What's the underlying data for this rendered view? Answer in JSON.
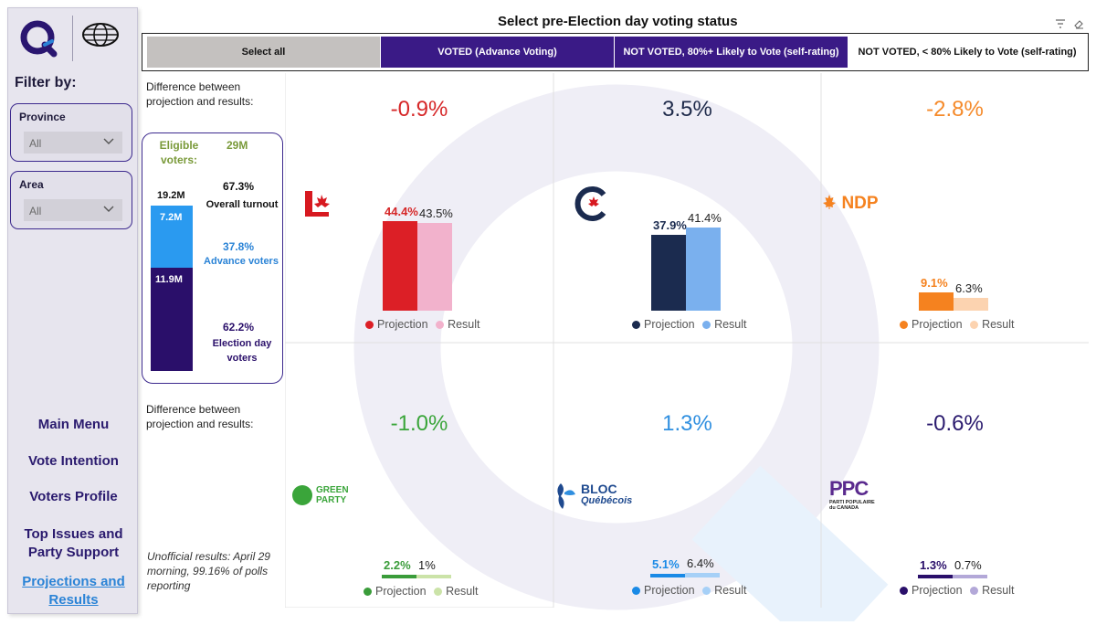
{
  "header": {
    "title": "Select pre-Election day voting status",
    "slicer_buttons": [
      {
        "label": "Select all",
        "bg": "#c4c1bf",
        "fg": "#111111"
      },
      {
        "label": "VOTED (Advance Voting)",
        "bg": "#3a1a86",
        "fg": "#ffffff"
      },
      {
        "label": "NOT VOTED, 80%+ Likely to Vote (self-rating)",
        "bg": "#3a1a86",
        "fg": "#ffffff"
      },
      {
        "label": "NOT VOTED, < 80% Likely to Vote (self-rating)",
        "bg": "#ffffff",
        "fg": "#111111"
      }
    ]
  },
  "sidebar": {
    "filter_title": "Filter by:",
    "filters": [
      {
        "label": "Province",
        "value": "All"
      },
      {
        "label": "Area",
        "value": "All"
      }
    ],
    "nav": [
      "Main Menu",
      "Vote Intention",
      "Voters Profile",
      "Top Issues and Party Support",
      "Projections and Results"
    ],
    "active_nav": "Projections and Results"
  },
  "info": {
    "diff_label": "Difference between projection and results:",
    "eligible_label": "Eligible voters:",
    "eligible_value": "29M",
    "total_voters": "19.2M",
    "overall_turnout_pct": "67.3%",
    "overall_turnout_label": "Overall turnout",
    "advance_value": "7.2M",
    "advance_pct": "37.8%",
    "advance_label": "Advance voters",
    "election_day_value": "11.9M",
    "election_day_pct": "62.2%",
    "election_day_label": "Election day voters",
    "unofficial_note": "Unofficial results: April 29 morning, 99.16% of polls reporting"
  },
  "legend": {
    "projection": "Projection",
    "result": "Result"
  },
  "parties": [
    {
      "key": "liberal",
      "difference": "-0.9%",
      "diff_color": "#d62728",
      "projection": 44.4,
      "projection_label": "44.4%",
      "result": 43.5,
      "result_label": "43.5%",
      "proj_color": "#dc1f26",
      "res_color": "#f2b2cc",
      "label_color": "#d62728"
    },
    {
      "key": "conservative",
      "difference": "3.5%",
      "diff_color": "#1e2a4a",
      "projection": 37.9,
      "projection_label": "37.9%",
      "result": 41.4,
      "result_label": "41.4%",
      "proj_color": "#1b2b4f",
      "res_color": "#7ab0ee",
      "label_color": "#1b2b4f"
    },
    {
      "key": "ndp",
      "difference": "-2.8%",
      "diff_color": "#f58a2a",
      "projection": 9.1,
      "projection_label": "9.1%",
      "result": 6.3,
      "result_label": "6.3%",
      "proj_color": "#f5821f",
      "res_color": "#fcd3b0",
      "label_color": "#f5821f"
    },
    {
      "key": "green",
      "difference": "-1.0%",
      "diff_color": "#3aa53a",
      "projection": 2.2,
      "projection_label": "2.2%",
      "result": 1,
      "result_label": "1%",
      "proj_color": "#3a9c3a",
      "res_color": "#cbe3a8",
      "label_color": "#3a9c3a"
    },
    {
      "key": "bloc",
      "difference": "1.3%",
      "diff_color": "#2f8fe0",
      "projection": 5.1,
      "projection_label": "5.1%",
      "result": 6.4,
      "result_label": "6.4%",
      "proj_color": "#1a8ae6",
      "res_color": "#a6d0f7",
      "label_color": "#1a8ae6"
    },
    {
      "key": "ppc",
      "difference": "-0.6%",
      "diff_color": "#2a1a6e",
      "projection": 1.3,
      "projection_label": "1.3%",
      "result": 0.7,
      "result_label": "0.7%",
      "proj_color": "#2a0f6a",
      "res_color": "#b3a8d8",
      "label_color": "#2a0f6a"
    }
  ],
  "logos": {
    "ndp": "NDP",
    "green_line1": "GREEN",
    "green_line2": "PARTY",
    "bloc_line1": "BLOC",
    "bloc_line2": "Québécois",
    "ppc_main": "PPC",
    "ppc_sub1": "PARTI POPULAIRE",
    "ppc_sub2": "du CANADA"
  }
}
